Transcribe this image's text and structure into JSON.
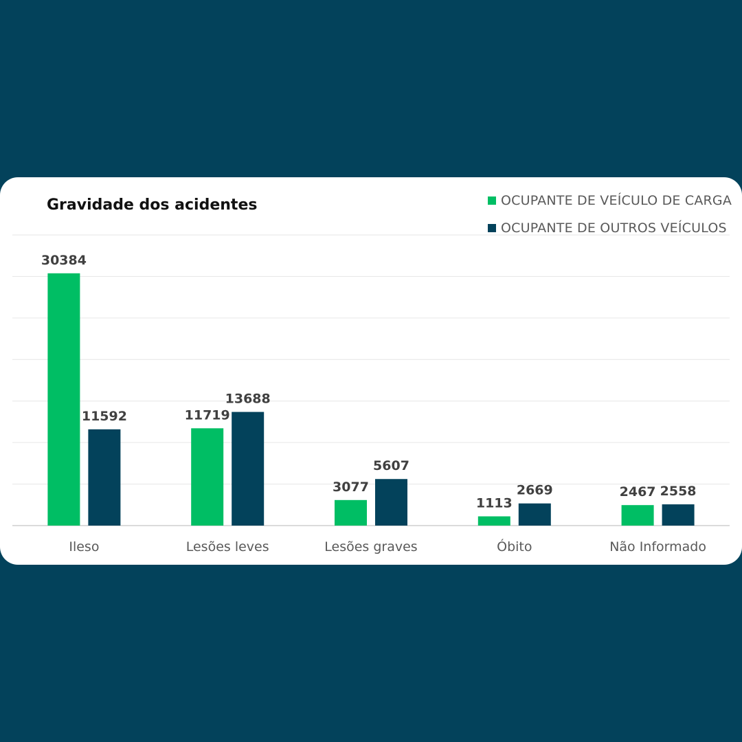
{
  "colors": {
    "background": "#03425b",
    "card": "#ffffff",
    "series_1": "#00be64",
    "series_2": "#03425b",
    "grid": "#e6e6e6",
    "axis": "#cfcfcf"
  },
  "chart_data": {
    "type": "bar",
    "title": "Gravidade dos acidentes",
    "xlabel": "",
    "ylabel": "",
    "categories": [
      "Ileso",
      "Lesões leves",
      "Lesões graves",
      "Óbito",
      "Não Informado"
    ],
    "series": [
      {
        "name": "OCUPANTE DE VEÍCULO DE CARGA",
        "values": [
          30384,
          11719,
          3077,
          1113,
          2467
        ]
      },
      {
        "name": "OCUPANTE DE OUTROS VEÍCULOS",
        "values": [
          11592,
          13688,
          5607,
          2669,
          2558
        ]
      }
    ],
    "ylim": [
      0,
      35000
    ],
    "grid": true,
    "legend_position": "top-right",
    "data_labels": true
  }
}
